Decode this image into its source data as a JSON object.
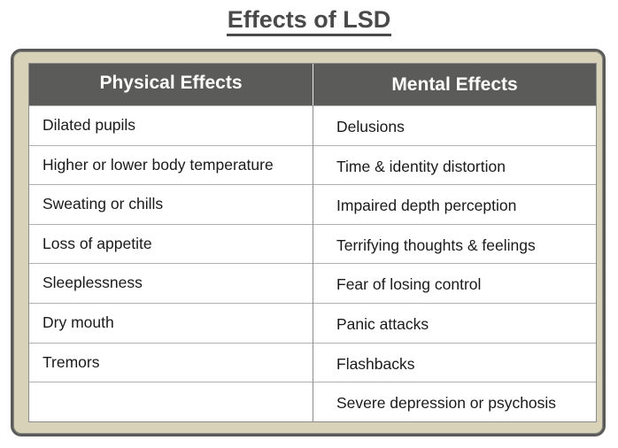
{
  "title": "Effects of LSD",
  "table": {
    "headers": {
      "physical": "Physical Effects",
      "mental": "Mental Effects"
    },
    "rows": [
      {
        "physical": "Dilated pupils",
        "mental": "Delusions"
      },
      {
        "physical": "Higher or lower body temperature",
        "mental": "Time & identity distortion"
      },
      {
        "physical": "Sweating or chills",
        "mental": "Impaired depth perception"
      },
      {
        "physical": "Loss of appetite",
        "mental": "Terrifying thoughts & feelings"
      },
      {
        "physical": "Sleeplessness",
        "mental": "Fear of losing control"
      },
      {
        "physical": "Dry mouth",
        "mental": "Panic attacks"
      },
      {
        "physical": "Tremors",
        "mental": "Flashbacks"
      },
      {
        "physical": "",
        "mental": "Severe depression or psychosis"
      }
    ]
  },
  "colors": {
    "header_bg": "#5b5b59",
    "frame_bg": "#d8d3b8",
    "title_text": "#4a4a4a"
  }
}
